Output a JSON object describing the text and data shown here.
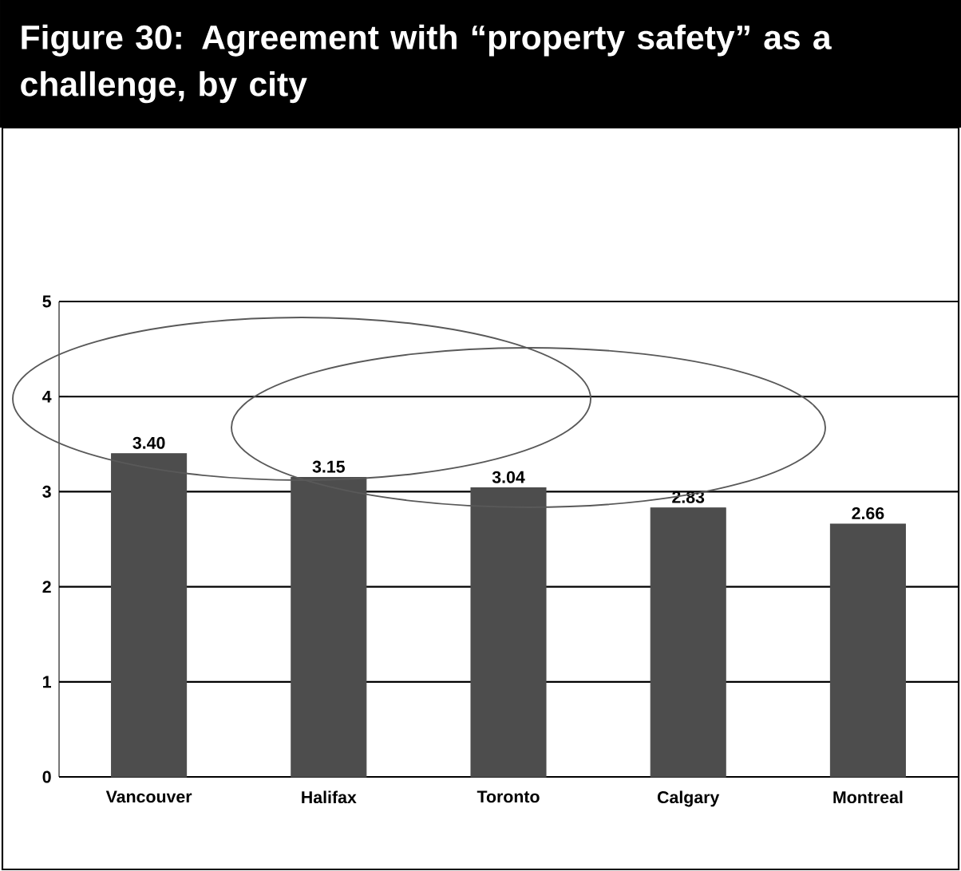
{
  "chart_data": {
    "type": "bar",
    "title": "Figure 30: Agreement with “property safety” as a challenge, by city",
    "categories": [
      "Vancouver",
      "Halifax",
      "Toronto",
      "Calgary",
      "Montreal"
    ],
    "values": [
      3.4,
      3.15,
      3.04,
      2.83,
      2.66
    ],
    "value_labels": [
      "3.40",
      "3.15",
      "3.04",
      "2.83",
      "2.66"
    ],
    "color": "#4d4d4d",
    "ylim": [
      0,
      5
    ],
    "yticks": [
      0,
      1,
      2,
      3,
      4,
      5
    ],
    "grid": "y"
  }
}
